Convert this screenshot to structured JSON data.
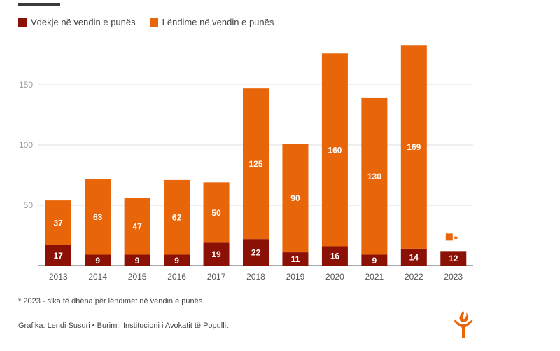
{
  "chart_data": {
    "type": "bar",
    "stacked": true,
    "categories": [
      "2013",
      "2014",
      "2015",
      "2016",
      "2017",
      "2018",
      "2019",
      "2020",
      "2021",
      "2022",
      "2023"
    ],
    "series": [
      {
        "name": "Vdekje në vendin e punës",
        "color": "#8b1005",
        "values": [
          17,
          9,
          9,
          9,
          19,
          22,
          11,
          16,
          9,
          14,
          12
        ]
      },
      {
        "name": "Lëndime në vendin e punës",
        "color": "#e8650a",
        "values": [
          37,
          63,
          47,
          62,
          50,
          125,
          90,
          160,
          130,
          169,
          null
        ]
      }
    ],
    "yticks": [
      50,
      100,
      150
    ],
    "ylim": [
      0,
      190
    ],
    "grid": true,
    "legend_position": "top-left",
    "missing_marker": "*"
  },
  "footnote": "* 2023 - s'ka të dhëna për lëndimet në vendin e punës.",
  "credits": "Grafika: Lendi Susuri • Burimi: Institucioni i Avokatit të Popullit",
  "logo_icon": "torch-logo-icon"
}
